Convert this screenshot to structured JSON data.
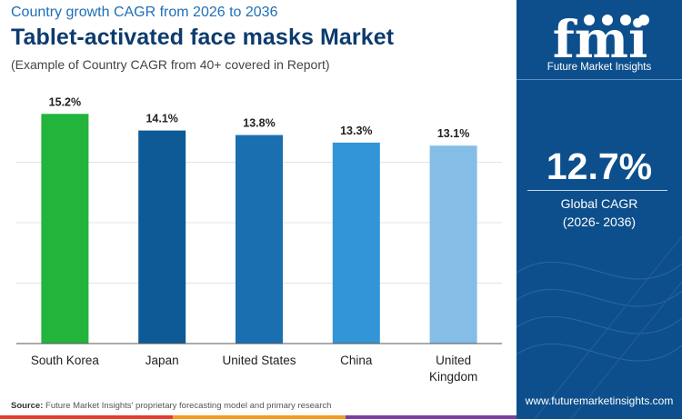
{
  "header": {
    "subtitle": "Country growth CAGR from 2026 to 2036",
    "title": "Tablet-activated face masks Market",
    "note": "(Example of Country CAGR from 40+ covered in Report)"
  },
  "chart_data": {
    "type": "bar",
    "categories": [
      "South Korea",
      "Japan",
      "United States",
      "China",
      "United Kingdom"
    ],
    "category_lines": [
      [
        "South Korea"
      ],
      [
        "Japan"
      ],
      [
        "United States"
      ],
      [
        "China"
      ],
      [
        "United",
        "Kingdom"
      ]
    ],
    "values": [
      15.2,
      14.1,
      13.8,
      13.3,
      13.1
    ],
    "value_labels": [
      "15.2%",
      "14.1%",
      "13.8%",
      "13.3%",
      "13.1%"
    ],
    "colors": [
      "#22b43b",
      "#0d5a96",
      "#1a6fb1",
      "#3295d6",
      "#84bde5"
    ],
    "ylim": [
      0,
      16
    ],
    "grid": true,
    "title": "Tablet-activated face masks Market",
    "xlabel": "",
    "ylabel": ""
  },
  "source": {
    "label": "Source:",
    "text": "Future Market Insights' proprietary forecasting model and primary research"
  },
  "sidebar": {
    "logo_text": "fmi",
    "logo_caption": "Future Market Insights",
    "global_value": "12.7%",
    "global_label": "Global CAGR",
    "global_period": "(2026- 2036)",
    "url": "www.futuremarketinsights.com"
  },
  "colors": {
    "panel": "#0d4f8c",
    "title": "#0d3b6e",
    "subtitle": "#1e6fb8",
    "stripe": [
      "#e63b2e",
      "#f29c1f",
      "#7a3fa0",
      "#1e6fb8"
    ]
  }
}
